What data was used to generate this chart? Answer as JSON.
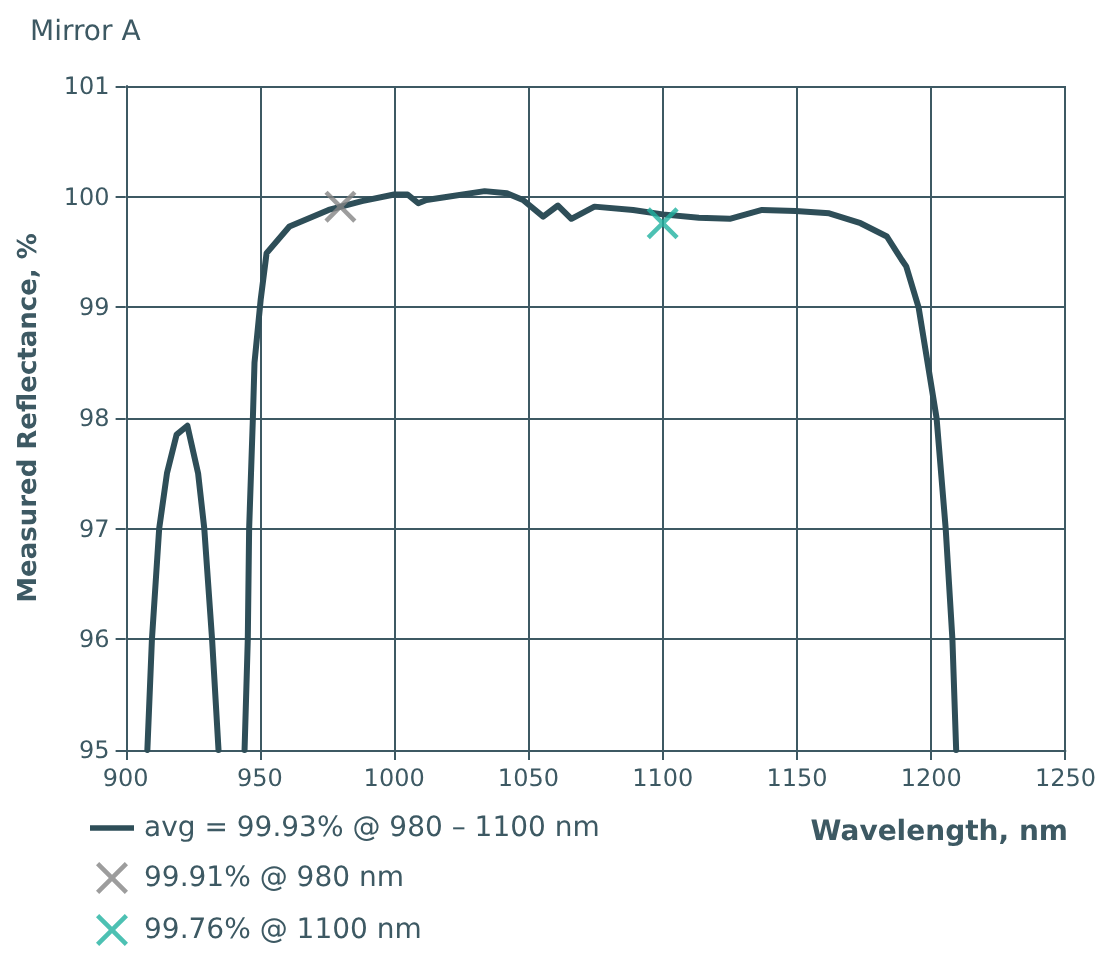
{
  "chart_data": {
    "type": "line",
    "title": "Mirror A",
    "xlabel": "Wavelength, nm",
    "ylabel": "Measured Reflectance, %",
    "xlim": [
      900,
      1250
    ],
    "xticks": [
      900,
      950,
      1000,
      1050,
      1100,
      1150,
      1200,
      1250
    ],
    "ylim": [
      95,
      101
    ],
    "yticks": [
      95,
      96,
      97,
      98,
      99,
      100,
      101
    ],
    "grid": true,
    "legend": "bottom left",
    "line_style": "solid",
    "series": [
      {
        "name": "avg = 99.93% @ 980 – 1100 nm",
        "color": "#2e4e58",
        "marker": "none",
        "x": [
          908.1,
          909.8,
          912.5,
          915.4,
          919,
          923,
          927,
          929.3,
          932.2,
          934.6,
          939,
          944.3,
          945.5,
          946,
          947.4,
          948,
          950.3,
          952.5,
          961,
          975.6,
          988,
          1000,
          1005,
          1009,
          1012,
          1020,
          1033.7,
          1042,
          1048,
          1055.5,
          1061,
          1066,
          1074.6,
          1089,
          1100,
          1113.5,
          1125,
          1137,
          1149.5,
          1162,
          1173.7,
          1183.5,
          1189,
          1190.7,
          1195.3,
          1202,
          1205.4,
          1207.9,
          1209.3
        ],
        "values": [
          95,
          96,
          97,
          97.5,
          97.85,
          97.93,
          97.5,
          97,
          96,
          95,
          null,
          95,
          96,
          97,
          98,
          98.5,
          99.07,
          99.49,
          99.73,
          99.88,
          99.96,
          100.02,
          100.02,
          99.94,
          99.97,
          100,
          100.05,
          100.03,
          99.97,
          99.82,
          99.92,
          99.8,
          99.91,
          99.88,
          99.84,
          99.81,
          99.8,
          99.88,
          99.87,
          99.85,
          99.76,
          99.64,
          99.43,
          99.37,
          99,
          98,
          97,
          96,
          95
        ]
      },
      {
        "name": "99.91% @ 980 nm",
        "color": "#858585",
        "type": "scatter",
        "marker": "cross",
        "x": [
          980
        ],
        "values": [
          99.91
        ]
      },
      {
        "name": "99.76% @ 1100 nm",
        "color": "#20b2a0",
        "type": "scatter",
        "marker": "cross",
        "x": [
          1100
        ],
        "values": [
          99.76
        ]
      }
    ]
  }
}
